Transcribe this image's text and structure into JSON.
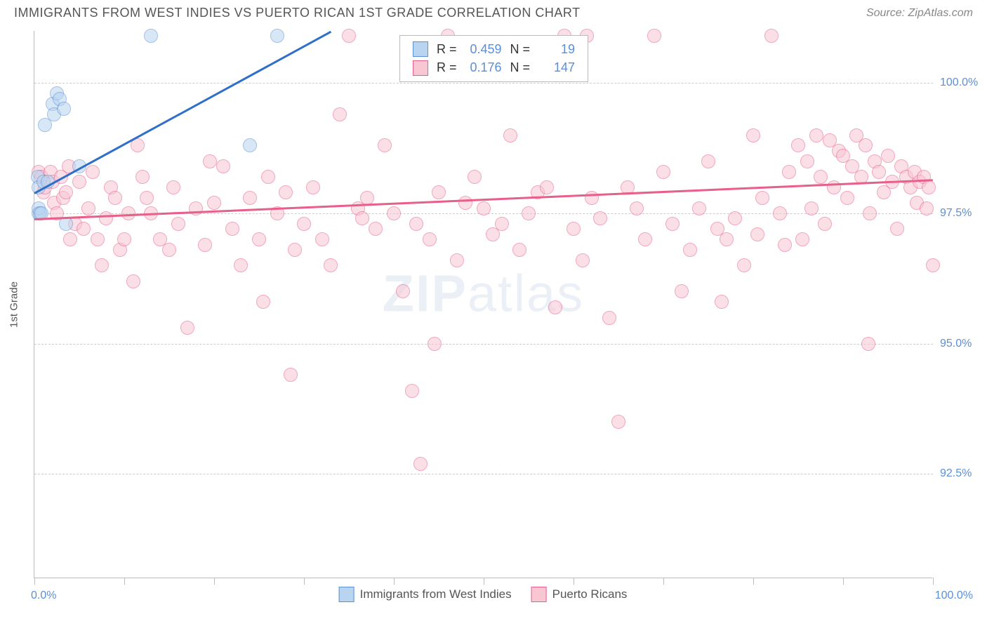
{
  "header": {
    "title": "IMMIGRANTS FROM WEST INDIES VS PUERTO RICAN 1ST GRADE CORRELATION CHART",
    "source": "Source: ZipAtlas.com"
  },
  "watermark": {
    "zip": "ZIP",
    "atlas": "atlas"
  },
  "chart": {
    "type": "scatter",
    "ylabel": "1st Grade",
    "xlim": [
      0,
      100
    ],
    "ylim": [
      90.5,
      101
    ],
    "x_ticks": [
      0,
      10,
      20,
      30,
      40,
      50,
      60,
      70,
      80,
      90,
      100
    ],
    "y_gridlines": [
      92.5,
      95.0,
      97.5,
      100.0
    ],
    "y_grid_labels": [
      "92.5%",
      "95.0%",
      "97.5%",
      "100.0%"
    ],
    "x_min_label": "0.0%",
    "x_max_label": "100.0%",
    "background_color": "#ffffff",
    "grid_color": "#cccccc",
    "axis_color": "#bbbbbb",
    "tick_label_color": "#5b8fd6",
    "series": [
      {
        "name": "Immigrants from West Indies",
        "fill": "#b8d4f0",
        "stroke": "#5b8fd6",
        "line_color": "#2f6fc9",
        "marker_size": 20,
        "fill_opacity": 0.55,
        "R": "0.459",
        "N": "19",
        "regression": {
          "x1": 0,
          "y1": 97.9,
          "x2": 33,
          "y2": 101.0
        },
        "points": [
          [
            0.5,
            97.5
          ],
          [
            0.5,
            97.6
          ],
          [
            0.6,
            97.5
          ],
          [
            0.8,
            97.5
          ],
          [
            0.4,
            98.2
          ],
          [
            0.5,
            98.0
          ],
          [
            1.0,
            98.1
          ],
          [
            1.5,
            98.1
          ],
          [
            1.2,
            99.2
          ],
          [
            2.0,
            99.6
          ],
          [
            2.2,
            99.4
          ],
          [
            2.5,
            99.8
          ],
          [
            2.8,
            99.7
          ],
          [
            3.3,
            99.5
          ],
          [
            3.5,
            97.3
          ],
          [
            5.0,
            98.4
          ],
          [
            13.0,
            100.9
          ],
          [
            24.0,
            98.8
          ],
          [
            27.0,
            100.9
          ]
        ]
      },
      {
        "name": "Puerto Ricans",
        "fill": "#f9c6d4",
        "stroke": "#e85f8a",
        "line_color": "#e85f8a",
        "marker_size": 20,
        "fill_opacity": 0.55,
        "R": "0.176",
        "N": "147",
        "regression": {
          "x1": 0,
          "y1": 97.4,
          "x2": 100,
          "y2": 98.15
        },
        "points": [
          [
            0.5,
            98.3
          ],
          [
            0.8,
            98.2
          ],
          [
            1.0,
            97.9
          ],
          [
            1.2,
            98.0
          ],
          [
            1.8,
            98.3
          ],
          [
            2.0,
            98.1
          ],
          [
            2.2,
            97.7
          ],
          [
            2.5,
            97.5
          ],
          [
            3.0,
            98.2
          ],
          [
            3.2,
            97.8
          ],
          [
            3.5,
            97.9
          ],
          [
            3.8,
            98.4
          ],
          [
            4.0,
            97.0
          ],
          [
            4.5,
            97.3
          ],
          [
            5.0,
            98.1
          ],
          [
            5.5,
            97.2
          ],
          [
            6.0,
            97.6
          ],
          [
            6.5,
            98.3
          ],
          [
            7.0,
            97.0
          ],
          [
            7.5,
            96.5
          ],
          [
            8.0,
            97.4
          ],
          [
            8.5,
            98.0
          ],
          [
            9.0,
            97.8
          ],
          [
            9.5,
            96.8
          ],
          [
            10.0,
            97.0
          ],
          [
            10.5,
            97.5
          ],
          [
            11.0,
            96.2
          ],
          [
            12.0,
            98.2
          ],
          [
            12.5,
            97.8
          ],
          [
            13.0,
            97.5
          ],
          [
            14.0,
            97.0
          ],
          [
            15.0,
            96.8
          ],
          [
            15.5,
            98.0
          ],
          [
            16.0,
            97.3
          ],
          [
            17.0,
            95.3
          ],
          [
            18.0,
            97.6
          ],
          [
            19.0,
            96.9
          ],
          [
            20.0,
            97.7
          ],
          [
            21.0,
            98.4
          ],
          [
            22.0,
            97.2
          ],
          [
            23.0,
            96.5
          ],
          [
            24.0,
            97.8
          ],
          [
            25.0,
            97.0
          ],
          [
            25.5,
            95.8
          ],
          [
            26.0,
            98.2
          ],
          [
            27.0,
            97.5
          ],
          [
            28.0,
            97.9
          ],
          [
            28.5,
            94.4
          ],
          [
            29.0,
            96.8
          ],
          [
            30.0,
            97.3
          ],
          [
            31.0,
            98.0
          ],
          [
            32.0,
            97.0
          ],
          [
            33.0,
            96.5
          ],
          [
            34.0,
            99.4
          ],
          [
            35.0,
            100.9
          ],
          [
            36.0,
            97.6
          ],
          [
            37.0,
            97.8
          ],
          [
            38.0,
            97.2
          ],
          [
            39.0,
            98.8
          ],
          [
            40.0,
            97.5
          ],
          [
            41.0,
            96.0
          ],
          [
            42.0,
            94.1
          ],
          [
            42.5,
            97.3
          ],
          [
            43.0,
            92.7
          ],
          [
            44.0,
            97.0
          ],
          [
            45.0,
            97.9
          ],
          [
            46.0,
            100.9
          ],
          [
            47.0,
            96.6
          ],
          [
            48.0,
            97.7
          ],
          [
            49.0,
            98.2
          ],
          [
            50.0,
            97.6
          ],
          [
            51.0,
            97.1
          ],
          [
            52.0,
            97.3
          ],
          [
            53.0,
            99.0
          ],
          [
            54.0,
            96.8
          ],
          [
            55.0,
            97.5
          ],
          [
            56.0,
            97.9
          ],
          [
            57.0,
            98.0
          ],
          [
            58.0,
            95.7
          ],
          [
            59.0,
            100.9
          ],
          [
            60.0,
            97.2
          ],
          [
            61.0,
            96.6
          ],
          [
            62.0,
            97.8
          ],
          [
            63.0,
            97.4
          ],
          [
            64.0,
            95.5
          ],
          [
            65.0,
            93.5
          ],
          [
            66.0,
            98.0
          ],
          [
            67.0,
            97.6
          ],
          [
            68.0,
            97.0
          ],
          [
            69.0,
            100.9
          ],
          [
            70.0,
            98.3
          ],
          [
            71.0,
            97.3
          ],
          [
            72.0,
            96.0
          ],
          [
            73.0,
            96.8
          ],
          [
            74.0,
            97.6
          ],
          [
            75.0,
            98.5
          ],
          [
            76.0,
            97.2
          ],
          [
            76.5,
            95.8
          ],
          [
            77.0,
            97.0
          ],
          [
            78.0,
            97.4
          ],
          [
            79.0,
            96.5
          ],
          [
            80.0,
            99.0
          ],
          [
            80.5,
            97.1
          ],
          [
            81.0,
            97.8
          ],
          [
            82.0,
            100.9
          ],
          [
            83.0,
            97.5
          ],
          [
            83.5,
            96.9
          ],
          [
            84.0,
            98.3
          ],
          [
            85.0,
            98.8
          ],
          [
            85.5,
            97.0
          ],
          [
            86.0,
            98.5
          ],
          [
            86.5,
            97.6
          ],
          [
            87.0,
            99.0
          ],
          [
            87.5,
            98.2
          ],
          [
            88.0,
            97.3
          ],
          [
            88.5,
            98.9
          ],
          [
            89.0,
            98.0
          ],
          [
            89.5,
            98.7
          ],
          [
            90.0,
            98.6
          ],
          [
            90.5,
            97.8
          ],
          [
            91.0,
            98.4
          ],
          [
            91.5,
            99.0
          ],
          [
            92.0,
            98.2
          ],
          [
            92.5,
            98.8
          ],
          [
            93.0,
            97.5
          ],
          [
            93.5,
            98.5
          ],
          [
            94.0,
            98.3
          ],
          [
            94.5,
            97.9
          ],
          [
            95.0,
            98.6
          ],
          [
            95.5,
            98.1
          ],
          [
            96.0,
            97.2
          ],
          [
            96.5,
            98.4
          ],
          [
            97.0,
            98.2
          ],
          [
            97.5,
            98.0
          ],
          [
            98.0,
            98.3
          ],
          [
            98.2,
            97.7
          ],
          [
            98.5,
            98.1
          ],
          [
            99.0,
            98.2
          ],
          [
            99.3,
            97.6
          ],
          [
            99.5,
            98.0
          ],
          [
            100.0,
            96.5
          ],
          [
            92.8,
            95.0
          ],
          [
            61.5,
            100.9
          ],
          [
            44.5,
            95.0
          ],
          [
            36.5,
            97.4
          ],
          [
            19.5,
            98.5
          ],
          [
            11.5,
            98.8
          ]
        ]
      }
    ]
  },
  "legend_top": {
    "R_label": "R =",
    "N_label": "N ="
  },
  "legend_bottom": {
    "items": [
      "Immigrants from West Indies",
      "Puerto Ricans"
    ]
  }
}
